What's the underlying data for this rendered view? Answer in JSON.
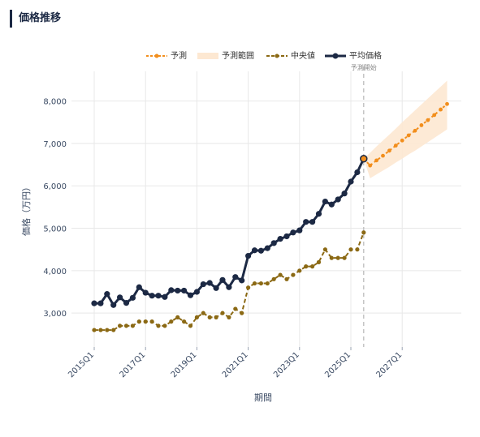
{
  "header": {
    "title": "価格推移"
  },
  "legend": {
    "items": [
      {
        "key": "forecast",
        "label": "予測",
        "color": "#f28e1c"
      },
      {
        "key": "forecast_range",
        "label": "予測範囲",
        "color": "#fde8d2"
      },
      {
        "key": "median",
        "label": "中央値",
        "color": "#8b6914"
      },
      {
        "key": "mean",
        "label": "平均価格",
        "color": "#1c2944"
      }
    ]
  },
  "chart_data": {
    "type": "line",
    "xlabel": "期間",
    "ylabel": "価格（万円）",
    "ylim": [
      2200,
      8700
    ],
    "yticks": [
      3000,
      4000,
      5000,
      6000,
      7000,
      8000
    ],
    "ytick_labels": [
      "3,000",
      "4,000",
      "5,000",
      "6,000",
      "7,000",
      "8,000"
    ],
    "xticks": [
      "2015Q1",
      "2017Q1",
      "2019Q1",
      "2021Q1",
      "2023Q1",
      "2025Q1",
      "2027Q1"
    ],
    "forecast_start_label": "予測開始",
    "forecast_start": "2025Q3",
    "grid": true,
    "legend_position": "top-center",
    "series": [
      {
        "name": "平均価格",
        "color": "#1c2944",
        "x": [
          "2015Q1",
          "2015Q2",
          "2015Q3",
          "2015Q4",
          "2016Q1",
          "2016Q2",
          "2016Q3",
          "2016Q4",
          "2017Q1",
          "2017Q2",
          "2017Q3",
          "2017Q4",
          "2018Q1",
          "2018Q2",
          "2018Q3",
          "2018Q4",
          "2019Q1",
          "2019Q2",
          "2019Q3",
          "2019Q4",
          "2020Q1",
          "2020Q2",
          "2020Q3",
          "2020Q4",
          "2021Q1",
          "2021Q2",
          "2021Q3",
          "2021Q4",
          "2022Q1",
          "2022Q2",
          "2022Q3",
          "2022Q4",
          "2023Q1",
          "2023Q2",
          "2023Q3",
          "2023Q4",
          "2024Q1",
          "2024Q2",
          "2024Q3",
          "2024Q4",
          "2025Q1",
          "2025Q2",
          "2025Q3"
        ],
        "values": [
          3230,
          3230,
          3450,
          3190,
          3370,
          3240,
          3360,
          3610,
          3480,
          3410,
          3410,
          3380,
          3540,
          3530,
          3530,
          3420,
          3500,
          3680,
          3710,
          3590,
          3780,
          3610,
          3850,
          3770,
          4350,
          4480,
          4470,
          4530,
          4650,
          4750,
          4810,
          4900,
          4950,
          5150,
          5150,
          5340,
          5630,
          5560,
          5680,
          5820,
          6100,
          6320,
          6640
        ]
      },
      {
        "name": "中央値",
        "color": "#8b6914",
        "x": [
          "2015Q1",
          "2015Q2",
          "2015Q3",
          "2015Q4",
          "2016Q1",
          "2016Q2",
          "2016Q3",
          "2016Q4",
          "2017Q1",
          "2017Q2",
          "2017Q3",
          "2017Q4",
          "2018Q1",
          "2018Q2",
          "2018Q3",
          "2018Q4",
          "2019Q1",
          "2019Q2",
          "2019Q3",
          "2019Q4",
          "2020Q1",
          "2020Q2",
          "2020Q3",
          "2020Q4",
          "2021Q1",
          "2021Q2",
          "2021Q3",
          "2021Q4",
          "2022Q1",
          "2022Q2",
          "2022Q3",
          "2022Q4",
          "2023Q1",
          "2023Q2",
          "2023Q3",
          "2023Q4",
          "2024Q1",
          "2024Q2",
          "2024Q3",
          "2024Q4",
          "2025Q1",
          "2025Q2",
          "2025Q3"
        ],
        "values": [
          2600,
          2600,
          2600,
          2600,
          2700,
          2700,
          2700,
          2800,
          2800,
          2800,
          2700,
          2700,
          2800,
          2900,
          2800,
          2700,
          2900,
          3000,
          2900,
          2900,
          3000,
          2900,
          3100,
          3000,
          3600,
          3700,
          3700,
          3700,
          3800,
          3900,
          3800,
          3900,
          4000,
          4100,
          4100,
          4200,
          4500,
          4300,
          4300,
          4300,
          4500,
          4500,
          4900
        ]
      },
      {
        "name": "予測",
        "color": "#f28e1c",
        "x": [
          "2025Q3",
          "2025Q4",
          "2026Q1",
          "2026Q2",
          "2026Q3",
          "2026Q4",
          "2027Q1",
          "2027Q2",
          "2027Q3",
          "2027Q4",
          "2028Q1",
          "2028Q2",
          "2028Q3",
          "2028Q4"
        ],
        "values": [
          6640,
          6480,
          6600,
          6710,
          6830,
          6950,
          7070,
          7190,
          7300,
          7430,
          7550,
          7670,
          7800,
          7930
        ]
      }
    ],
    "forecast_range": {
      "name": "予測範囲",
      "x": [
        "2025Q3",
        "2025Q4",
        "2026Q1",
        "2026Q2",
        "2026Q3",
        "2026Q4",
        "2027Q1",
        "2027Q2",
        "2027Q3",
        "2027Q4",
        "2028Q1",
        "2028Q2",
        "2028Q3",
        "2028Q4"
      ],
      "lower": [
        6640,
        6180,
        6270,
        6360,
        6450,
        6550,
        6640,
        6740,
        6830,
        6930,
        7030,
        7130,
        7230,
        7330
      ],
      "upper": [
        6640,
        6780,
        6930,
        7070,
        7210,
        7350,
        7500,
        7640,
        7780,
        7920,
        8060,
        8200,
        8340,
        8480
      ]
    }
  }
}
